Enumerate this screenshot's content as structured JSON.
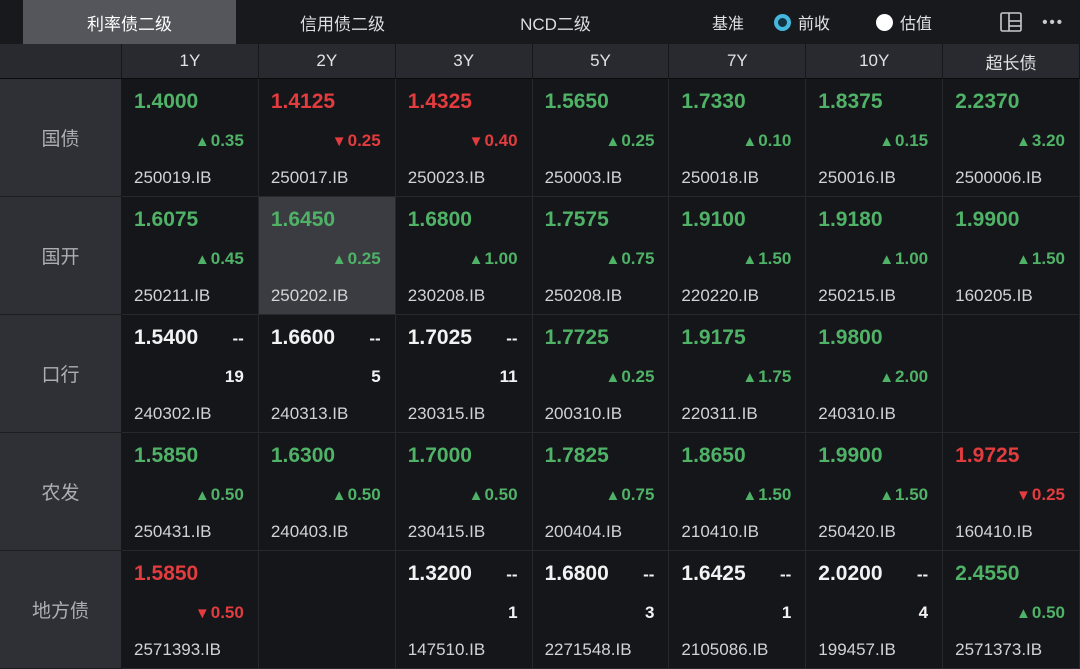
{
  "topbar": {
    "tabs": [
      {
        "label": "利率债二级",
        "active": true
      },
      {
        "label": "信用债二级",
        "active": false
      },
      {
        "label": "NCD二级",
        "active": false
      }
    ],
    "benchmark_label": "基准",
    "radios": [
      {
        "label": "前收",
        "selected": true
      },
      {
        "label": "估值",
        "selected": false
      }
    ],
    "icons": [
      "layout-icon",
      "more-icon"
    ]
  },
  "glyphs": {
    "up_arrow": "▲",
    "down_arrow": "▼",
    "no_change": "--",
    "more": "•••"
  },
  "colors": {
    "up": "#4fb267",
    "down": "#e23c3e",
    "radio_accent": "#45b6dc"
  },
  "table": {
    "columns": [
      "1Y",
      "2Y",
      "3Y",
      "5Y",
      "7Y",
      "10Y",
      "超长债"
    ],
    "rows": [
      {
        "label": "国债",
        "cells": [
          {
            "value": "1.4000",
            "dir": "up",
            "change": "0.35",
            "code": "250019.IB"
          },
          {
            "value": "1.4125",
            "dir": "down",
            "change": "0.25",
            "code": "250017.IB"
          },
          {
            "value": "1.4325",
            "dir": "down",
            "change": "0.40",
            "code": "250023.IB"
          },
          {
            "value": "1.5650",
            "dir": "up",
            "change": "0.25",
            "code": "250003.IB"
          },
          {
            "value": "1.7330",
            "dir": "up",
            "change": "0.10",
            "code": "250018.IB"
          },
          {
            "value": "1.8375",
            "dir": "up",
            "change": "0.15",
            "code": "250016.IB"
          },
          {
            "value": "2.2370",
            "dir": "up",
            "change": "3.20",
            "code": "2500006.IB"
          }
        ]
      },
      {
        "label": "国开",
        "cells": [
          {
            "value": "1.6075",
            "dir": "up",
            "change": "0.45",
            "code": "250211.IB"
          },
          {
            "value": "1.6450",
            "dir": "up",
            "change": "0.25",
            "code": "250202.IB",
            "highlight": true
          },
          {
            "value": "1.6800",
            "dir": "up",
            "change": "1.00",
            "code": "230208.IB"
          },
          {
            "value": "1.7575",
            "dir": "up",
            "change": "0.75",
            "code": "250208.IB"
          },
          {
            "value": "1.9100",
            "dir": "up",
            "change": "1.50",
            "code": "220220.IB"
          },
          {
            "value": "1.9180",
            "dir": "up",
            "change": "1.00",
            "code": "250215.IB"
          },
          {
            "value": "1.9900",
            "dir": "up",
            "change": "1.50",
            "code": "160205.IB"
          }
        ]
      },
      {
        "label": "口行",
        "cells": [
          {
            "value": "1.5400",
            "dir": "flat",
            "count": "19",
            "code": "240302.IB"
          },
          {
            "value": "1.6600",
            "dir": "flat",
            "count": "5",
            "code": "240313.IB"
          },
          {
            "value": "1.7025",
            "dir": "flat",
            "count": "11",
            "code": "230315.IB"
          },
          {
            "value": "1.7725",
            "dir": "up",
            "change": "0.25",
            "code": "200310.IB"
          },
          {
            "value": "1.9175",
            "dir": "up",
            "change": "1.75",
            "code": "220311.IB"
          },
          {
            "value": "1.9800",
            "dir": "up",
            "change": "2.00",
            "code": "240310.IB"
          },
          null
        ]
      },
      {
        "label": "农发",
        "cells": [
          {
            "value": "1.5850",
            "dir": "up",
            "change": "0.50",
            "code": "250431.IB"
          },
          {
            "value": "1.6300",
            "dir": "up",
            "change": "0.50",
            "code": "240403.IB"
          },
          {
            "value": "1.7000",
            "dir": "up",
            "change": "0.50",
            "code": "230415.IB"
          },
          {
            "value": "1.7825",
            "dir": "up",
            "change": "0.75",
            "code": "200404.IB"
          },
          {
            "value": "1.8650",
            "dir": "up",
            "change": "1.50",
            "code": "210410.IB"
          },
          {
            "value": "1.9900",
            "dir": "up",
            "change": "1.50",
            "code": "250420.IB"
          },
          {
            "value": "1.9725",
            "dir": "down",
            "change": "0.25",
            "code": "160410.IB"
          }
        ]
      },
      {
        "label": "地方债",
        "cells": [
          {
            "value": "1.5850",
            "dir": "down",
            "change": "0.50",
            "code": "2571393.IB"
          },
          null,
          {
            "value": "1.3200",
            "dir": "flat",
            "count": "1",
            "code": "147510.IB"
          },
          {
            "value": "1.6800",
            "dir": "flat",
            "count": "3",
            "code": "2271548.IB"
          },
          {
            "value": "1.6425",
            "dir": "flat",
            "count": "1",
            "code": "2105086.IB"
          },
          {
            "value": "2.0200",
            "dir": "flat",
            "count": "4",
            "code": "199457.IB"
          },
          {
            "value": "2.4550",
            "dir": "up",
            "change": "0.50",
            "code": "2571373.IB"
          }
        ]
      }
    ]
  }
}
